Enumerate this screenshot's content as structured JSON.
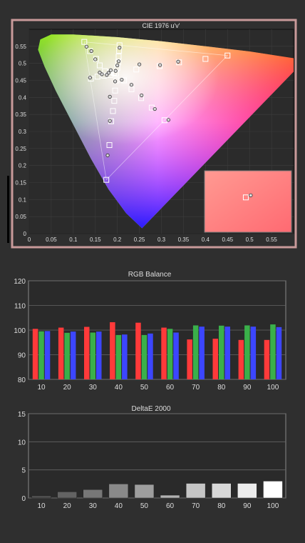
{
  "colors": {
    "background": "#2f2f2f",
    "frame_border": "#c89a9a",
    "plot_bg": "#2b2b2b"
  },
  "chart_data": [
    {
      "type": "scatter",
      "title": "CIE 1976 u'v'",
      "xlim": [
        0,
        0.6
      ],
      "ylim": [
        0,
        0.6
      ],
      "x_ticks": [
        "0",
        "0.05",
        "0.1",
        "0.15",
        "0.2",
        "0.25",
        "0.3",
        "0.35",
        "0.4",
        "0.45",
        "0.5",
        "0.55"
      ],
      "y_ticks": [
        "0",
        "0.05",
        "0.1",
        "0.15",
        "0.2",
        "0.25",
        "0.3",
        "0.35",
        "0.4",
        "0.45",
        "0.5",
        "0.55"
      ],
      "gamut": {
        "red": [
          0.45,
          0.523
        ],
        "green": [
          0.125,
          0.563
        ],
        "blue": [
          0.175,
          0.158
        ],
        "white": [
          0.198,
          0.468
        ]
      },
      "targets": [
        [
          0.125,
          0.563
        ],
        [
          0.138,
          0.536
        ],
        [
          0.152,
          0.513
        ],
        [
          0.16,
          0.494
        ],
        [
          0.172,
          0.477
        ],
        [
          0.183,
          0.474
        ],
        [
          0.192,
          0.472
        ],
        [
          0.197,
          0.47
        ],
        [
          0.205,
          0.553
        ],
        [
          0.204,
          0.537
        ],
        [
          0.203,
          0.52
        ],
        [
          0.202,
          0.503
        ],
        [
          0.2,
          0.486
        ],
        [
          0.243,
          0.482
        ],
        [
          0.296,
          0.492
        ],
        [
          0.34,
          0.503
        ],
        [
          0.4,
          0.513
        ],
        [
          0.45,
          0.523
        ],
        [
          0.14,
          0.455
        ],
        [
          0.155,
          0.461
        ],
        [
          0.17,
          0.464
        ],
        [
          0.184,
          0.466
        ],
        [
          0.215,
          0.45
        ],
        [
          0.232,
          0.424
        ],
        [
          0.254,
          0.398
        ],
        [
          0.278,
          0.37
        ],
        [
          0.307,
          0.333
        ],
        [
          0.198,
          0.45
        ],
        [
          0.195,
          0.42
        ],
        [
          0.193,
          0.39
        ],
        [
          0.19,
          0.36
        ],
        [
          0.186,
          0.33
        ],
        [
          0.182,
          0.26
        ],
        [
          0.175,
          0.158
        ]
      ],
      "measured": [
        [
          0.13,
          0.549
        ],
        [
          0.141,
          0.536
        ],
        [
          0.15,
          0.512
        ],
        [
          0.165,
          0.468
        ],
        [
          0.18,
          0.472
        ],
        [
          0.196,
          0.478
        ],
        [
          0.205,
          0.546
        ],
        [
          0.203,
          0.506
        ],
        [
          0.2,
          0.494
        ],
        [
          0.195,
          0.447
        ],
        [
          0.138,
          0.458
        ],
        [
          0.176,
          0.466
        ],
        [
          0.21,
          0.452
        ],
        [
          0.232,
          0.437
        ],
        [
          0.25,
          0.497
        ],
        [
          0.297,
          0.495
        ],
        [
          0.338,
          0.505
        ],
        [
          0.255,
          0.406
        ],
        [
          0.285,
          0.366
        ],
        [
          0.316,
          0.334
        ],
        [
          0.183,
          0.402
        ],
        [
          0.183,
          0.331
        ],
        [
          0.178,
          0.23
        ],
        [
          0.16,
          0.473
        ],
        [
          0.185,
          0.48
        ]
      ],
      "inset": {
        "target": [
          0.496,
          0.488
        ],
        "measured": [
          0.505,
          0.492
        ]
      }
    },
    {
      "type": "bar",
      "title": "RGB Balance",
      "categories": [
        "10",
        "20",
        "30",
        "40",
        "50",
        "60",
        "70",
        "80",
        "90",
        "100"
      ],
      "ylim": [
        80,
        120
      ],
      "y_ticks": [
        "80",
        "90",
        "100",
        "110",
        "120"
      ],
      "series": [
        {
          "color": "#ff3a3a",
          "values": [
            100.5,
            101.0,
            101.3,
            103.2,
            103.0,
            101.0,
            96.2,
            96.5,
            96.0,
            96.0
          ]
        },
        {
          "color": "#3ab04a",
          "values": [
            99.5,
            98.9,
            99.0,
            98.0,
            98.0,
            100.5,
            101.9,
            101.8,
            101.9,
            102.3
          ]
        },
        {
          "color": "#3c46ff",
          "values": [
            99.6,
            99.4,
            99.4,
            98.2,
            98.6,
            99.0,
            101.4,
            101.4,
            101.4,
            101.2
          ]
        }
      ]
    },
    {
      "type": "bar",
      "title": "DeltaE 2000",
      "categories": [
        "10",
        "20",
        "30",
        "40",
        "50",
        "60",
        "70",
        "80",
        "90",
        "100"
      ],
      "ylim": [
        0,
        15
      ],
      "y_ticks": [
        "0",
        "5",
        "10",
        "15"
      ],
      "values": [
        0.4,
        1.1,
        1.5,
        2.5,
        2.4,
        0.5,
        2.6,
        2.6,
        2.6,
        3.0
      ]
    }
  ]
}
